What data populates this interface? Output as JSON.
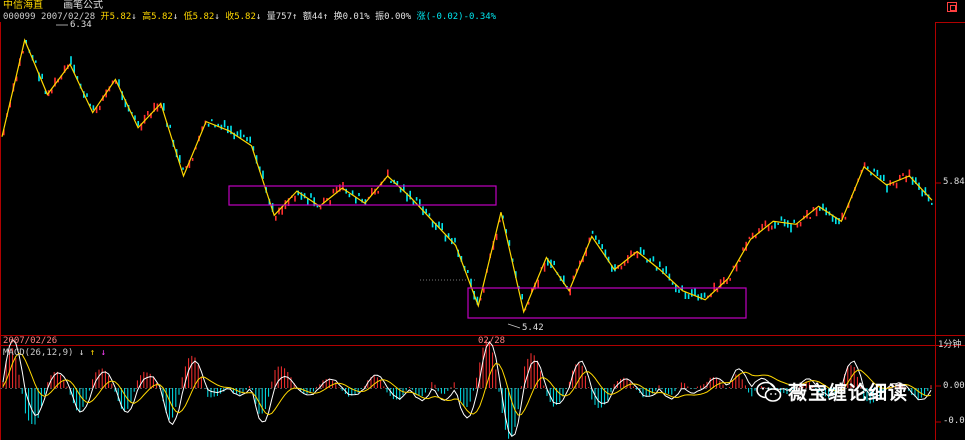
{
  "header": {
    "stock_name": "中信海直",
    "indicator_name": "画笔公式",
    "code": "000099",
    "date": "2007/02/28",
    "open_label": "开",
    "open": "5.82",
    "open_arrow": "↓",
    "high_label": "高",
    "high": "5.82",
    "high_arrow": "↓",
    "low_label": "低",
    "low": "5.82",
    "low_arrow": "↓",
    "close_label": "收",
    "close": "5.82",
    "close_arrow": "↓",
    "volume_label": "量",
    "volume": "757",
    "volume_arrow": "↑",
    "amount_label": "额",
    "amount": "44",
    "amount_arrow": "↑",
    "turnover_label": "换",
    "turnover": "0.01%",
    "amplitude_label": "振",
    "amplitude": "0.00%",
    "change_label": "涨",
    "change": "(-0.02)-0.34%"
  },
  "price_labels": {
    "high_mark": "6.34",
    "low_mark": "5.42",
    "right_axis": "5.84"
  },
  "date_axis": {
    "left_date": "2007/02/26",
    "mid_date": "02/28",
    "period": "1分钟"
  },
  "macd": {
    "label": "MACD(26,12,9)",
    "arrows": [
      "↓",
      "↑",
      "↓"
    ],
    "axis_top": "0.00",
    "axis_bottom": "-0.05"
  },
  "watermark": {
    "text": "薇宝缠论细读",
    "icon": "wechat-icon"
  },
  "colors": {
    "up": "#ff3030",
    "down": "#00e5ee",
    "stroke_line": "#ffd800",
    "box": "#c000c0",
    "frame": "#b00000"
  },
  "chart_data": {
    "type": "candlestick",
    "stroke_points": [
      6.02,
      6.34,
      6.16,
      6.26,
      6.1,
      6.21,
      6.05,
      6.13,
      5.89,
      6.07,
      6.04,
      5.99,
      5.76,
      5.84,
      5.79,
      5.85,
      5.8,
      5.89,
      5.82,
      5.74,
      5.66,
      5.46,
      5.77,
      5.44,
      5.62,
      5.51,
      5.69,
      5.58,
      5.64,
      5.58,
      5.51,
      5.48,
      5.55,
      5.68,
      5.74,
      5.73,
      5.79,
      5.74,
      5.92,
      5.86,
      5.89,
      5.81
    ]
  }
}
